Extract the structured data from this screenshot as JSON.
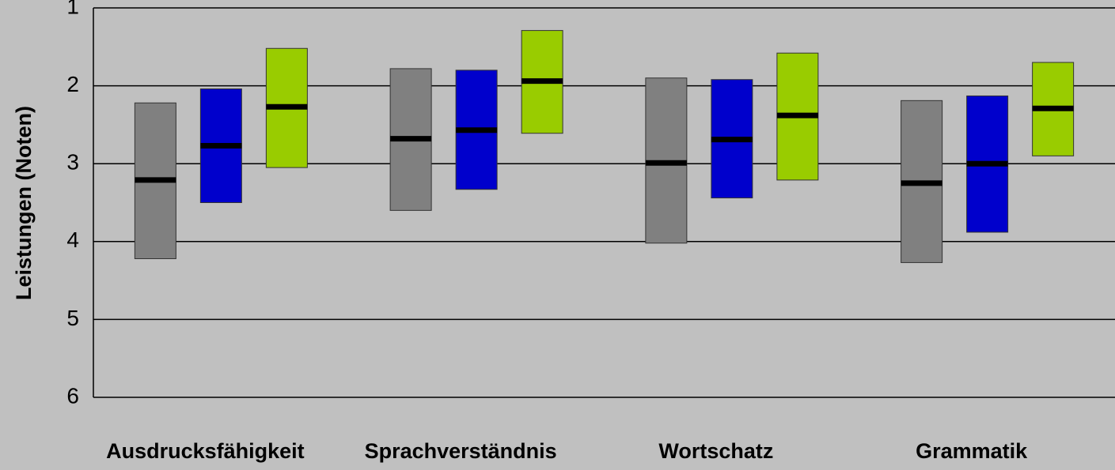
{
  "chart_data": {
    "type": "floating_bar",
    "y_label": "Leistungen (Noten)",
    "categories": [
      "Ausdrucksfähigkeit",
      "Sprachverständnis",
      "Wortschatz",
      "Grammatik"
    ],
    "ylim": [
      1,
      6
    ],
    "y_inverted": true,
    "yticks": [
      1,
      2,
      3,
      4,
      5,
      6
    ],
    "grid": true,
    "series": [
      {
        "color": "#808080",
        "low": [
          2.22,
          1.78,
          1.9,
          2.19
        ],
        "high": [
          4.22,
          3.6,
          4.02,
          4.27
        ],
        "median": [
          3.21,
          2.68,
          2.99,
          3.25
        ]
      },
      {
        "color": "#0000cc",
        "low": [
          2.04,
          1.8,
          1.92,
          2.13
        ],
        "high": [
          3.5,
          3.33,
          3.44,
          3.88
        ],
        "median": [
          2.77,
          2.57,
          2.69,
          3.0
        ]
      },
      {
        "color": "#99cc00",
        "low": [
          1.52,
          1.29,
          1.58,
          1.7
        ],
        "high": [
          3.05,
          2.61,
          3.21,
          2.9
        ],
        "median": [
          2.27,
          1.94,
          2.38,
          2.29
        ]
      }
    ]
  }
}
